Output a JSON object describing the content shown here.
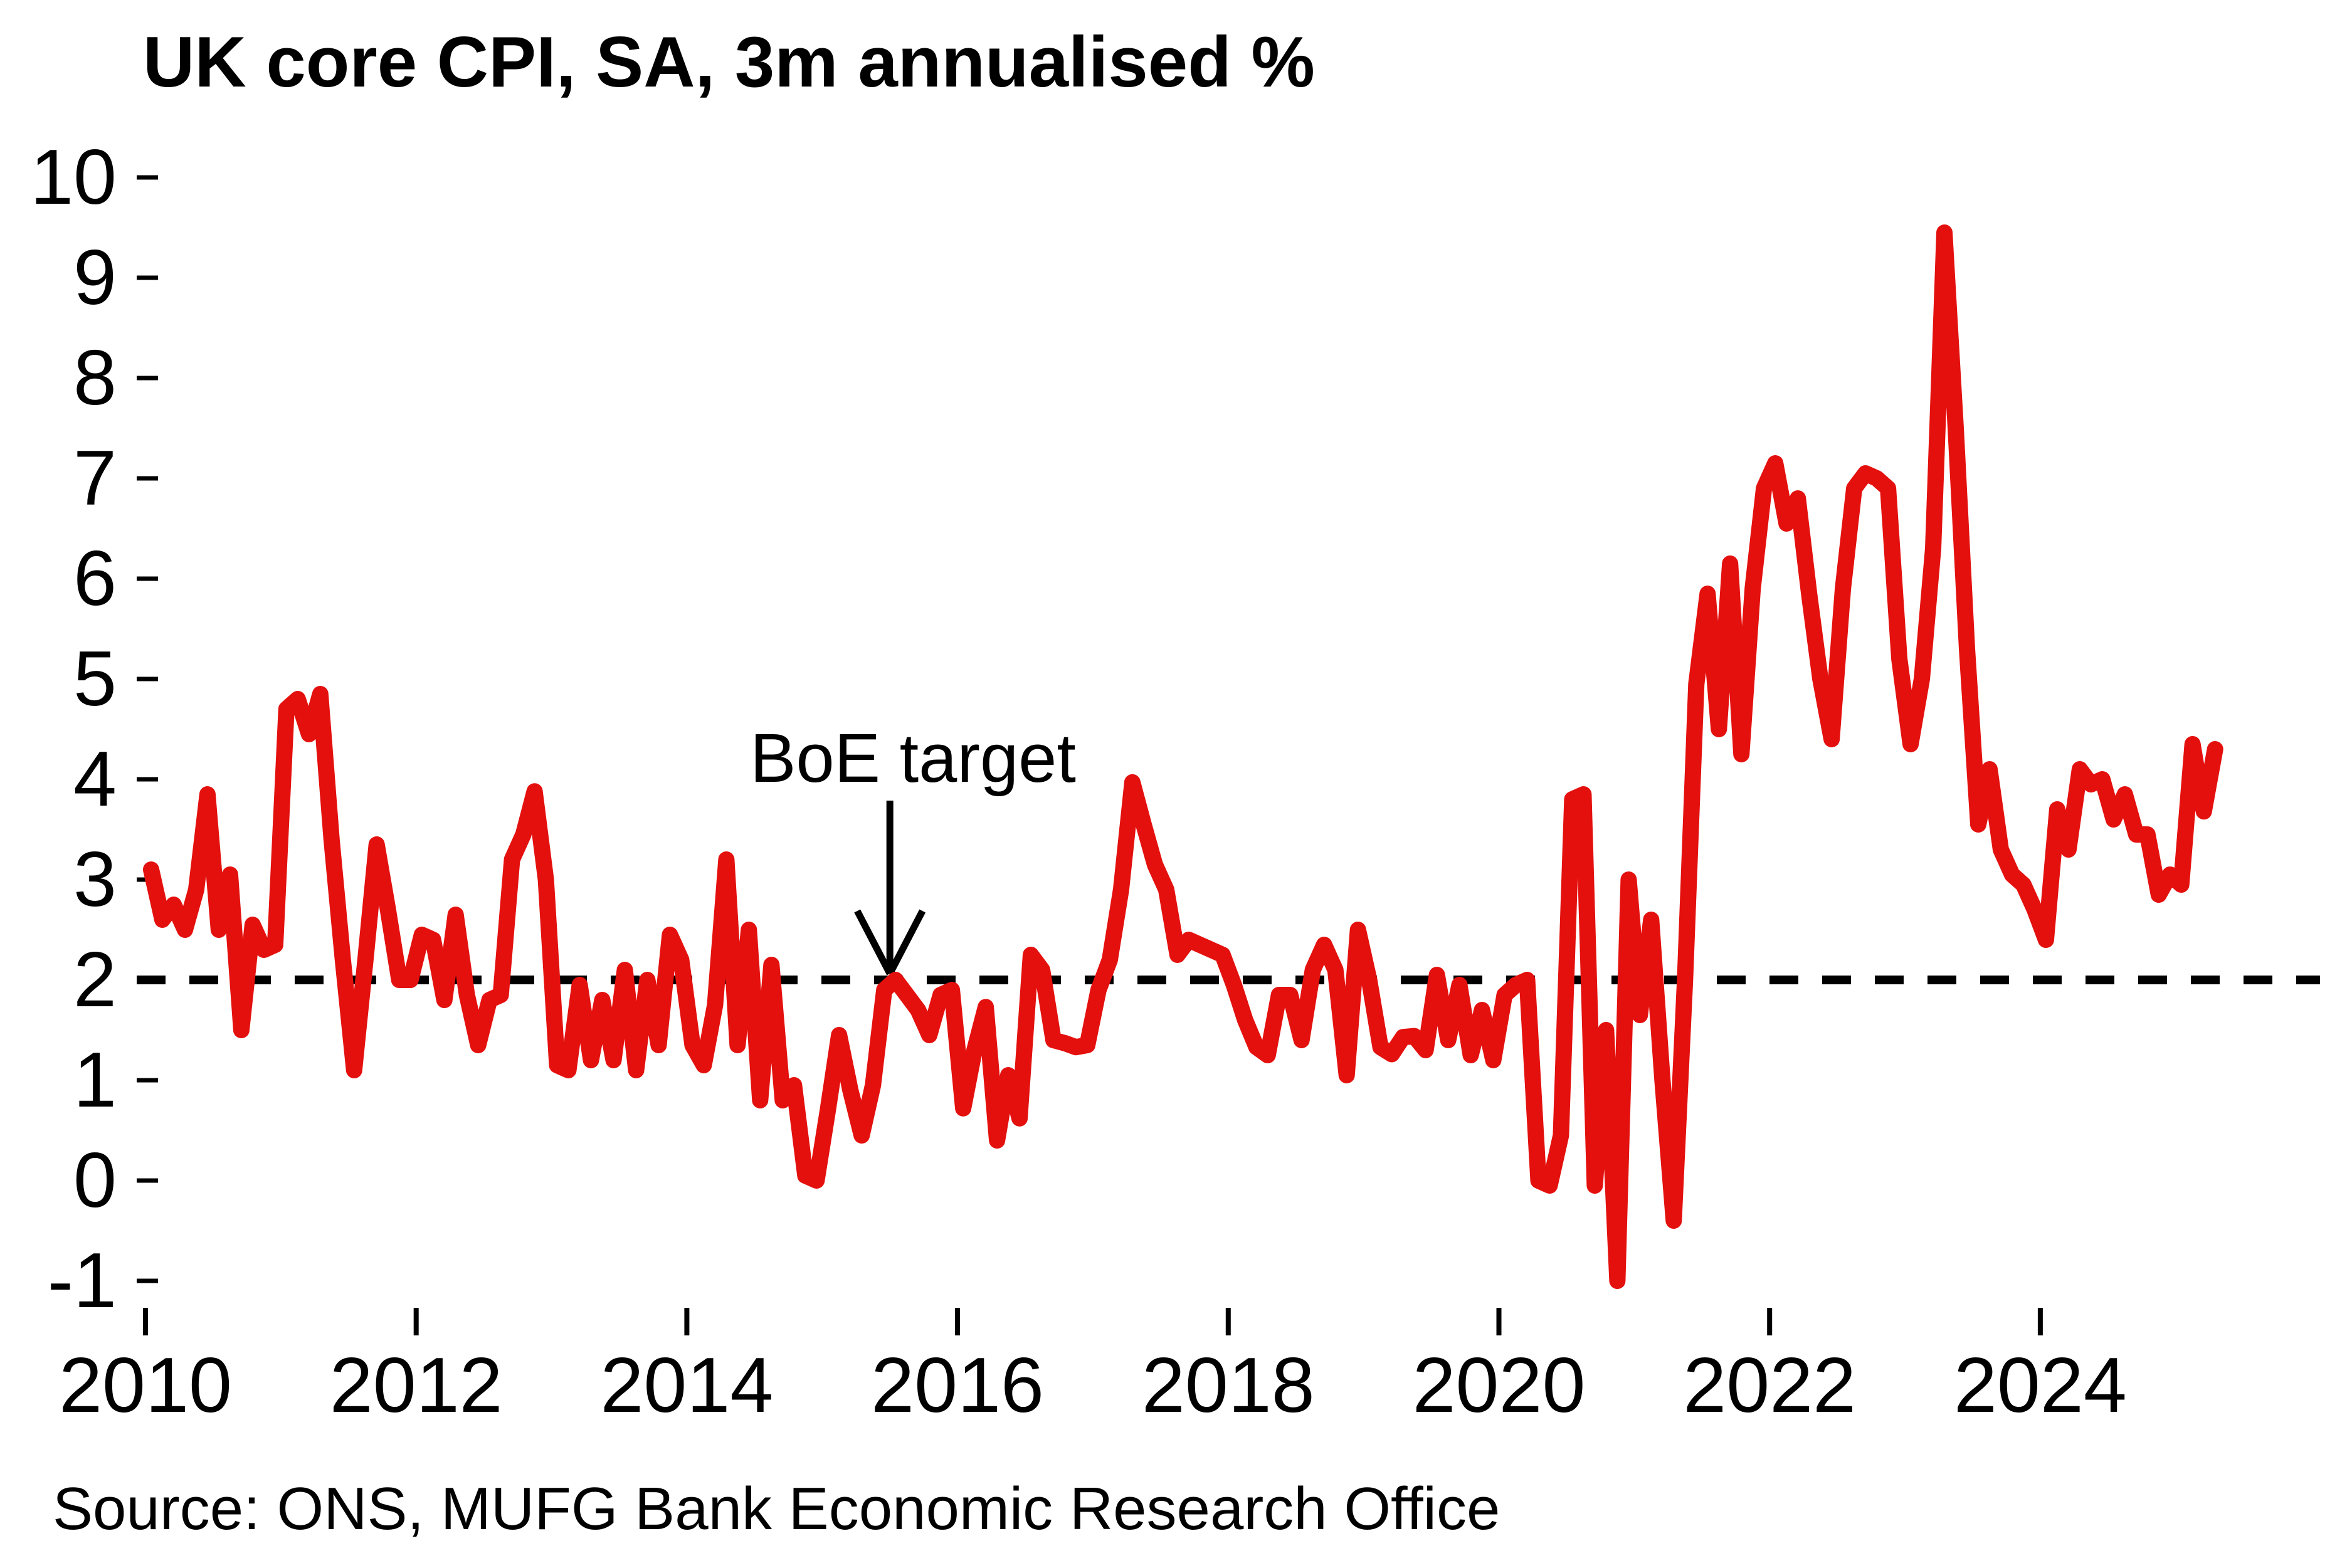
{
  "title": "UK core CPI, SA, 3m annualised %",
  "source": "Source: ONS, MUFG Bank Economic Research Office",
  "annotation": {
    "label": "BoE target",
    "points_to_value": 2,
    "arrow_x_year": 2015.5
  },
  "colors": {
    "series": "#e4100e",
    "target_line": "#000000",
    "text": "#000000",
    "background": "#ffffff"
  },
  "chart_data": {
    "type": "line",
    "title": "UK core CPI, SA, 3m annualised %",
    "grid": "off",
    "legend": "none",
    "x_axis": {
      "start": "2010-01",
      "end": "2025-04",
      "tick_labels": [
        "2010",
        "2012",
        "2014",
        "2016",
        "2018",
        "2020",
        "2022",
        "2024"
      ],
      "tick_interval_years": 2
    },
    "y_axis": {
      "ticks": [
        10,
        9,
        8,
        7,
        6,
        5,
        4,
        3,
        2,
        1,
        0,
        -1
      ],
      "min": -1,
      "max": 10
    },
    "target_line": {
      "value": 2,
      "style": "dashed",
      "label": "BoE target"
    },
    "series": [
      {
        "name": "UK core CPI, SA, 3m annualised %",
        "frequency": "monthly",
        "values_by_year": {
          "2010": [
            3.1,
            2.6,
            2.75,
            2.5,
            2.9,
            3.85,
            2.5,
            3.05,
            1.5,
            2.55,
            2.3,
            2.35
          ],
          "2011": [
            4.7,
            4.8,
            4.45,
            4.85,
            3.4,
            2.2,
            1.1,
            2.2,
            3.35,
            2.7,
            2.0,
            2.0
          ],
          "2012": [
            2.45,
            2.4,
            1.8,
            2.65,
            1.85,
            1.35,
            1.8,
            1.85,
            3.2,
            3.45,
            3.88,
            3.0
          ],
          "2013": [
            1.15,
            1.1,
            1.95,
            1.2,
            1.8,
            1.2,
            2.1,
            1.1,
            2.0,
            1.35,
            2.45,
            2.2
          ],
          "2014": [
            1.35,
            1.15,
            1.75,
            3.2,
            1.35,
            2.5,
            0.8,
            2.15,
            0.8,
            0.95,
            0.05,
            0.0
          ],
          "2015": [
            0.7,
            1.45,
            0.9,
            0.45,
            0.95,
            1.9,
            2.0,
            1.85,
            1.7,
            1.45,
            1.85,
            1.9
          ],
          "2016": [
            0.72,
            1.3,
            1.73,
            0.4,
            1.05,
            0.62,
            2.25,
            2.1,
            1.4,
            1.37,
            1.33,
            1.35
          ],
          "2017": [
            1.9,
            2.2,
            2.9,
            3.97,
            3.55,
            3.15,
            2.9,
            2.25,
            2.4,
            2.35,
            2.3,
            2.25
          ],
          "2018": [
            1.95,
            1.6,
            1.33,
            1.25,
            1.85,
            1.85,
            1.4,
            2.1,
            2.35,
            2.1,
            1.05,
            2.5
          ],
          "2019": [
            2.0,
            1.33,
            1.26,
            1.43,
            1.44,
            1.3,
            2.05,
            1.4,
            1.95,
            1.25,
            1.7,
            1.2
          ],
          "2020": [
            1.85,
            1.95,
            2.0,
            0.0,
            -0.05,
            0.45,
            3.8,
            3.85,
            -0.05,
            1.5,
            -1.0,
            3.0
          ],
          "2021": [
            1.65,
            2.6,
            1.0,
            -0.4,
            2.0,
            4.95,
            5.85,
            4.5,
            6.15,
            4.25,
            5.9,
            6.9
          ],
          "2022": [
            7.15,
            6.55,
            6.8,
            5.85,
            5.0,
            4.4,
            5.9,
            6.9,
            7.05,
            7.0,
            6.9,
            5.2
          ],
          "2023": [
            4.35,
            5.0,
            6.3,
            9.45,
            7.5,
            5.3,
            3.55,
            4.1,
            3.3,
            3.05,
            2.95,
            2.7
          ],
          "2024": [
            2.4,
            3.7,
            3.3,
            4.1,
            3.95,
            4.0,
            3.6,
            3.85,
            3.45,
            3.45,
            2.85,
            3.05
          ],
          "2025": [
            2.95,
            4.35,
            3.68,
            4.3
          ]
        }
      }
    ]
  }
}
